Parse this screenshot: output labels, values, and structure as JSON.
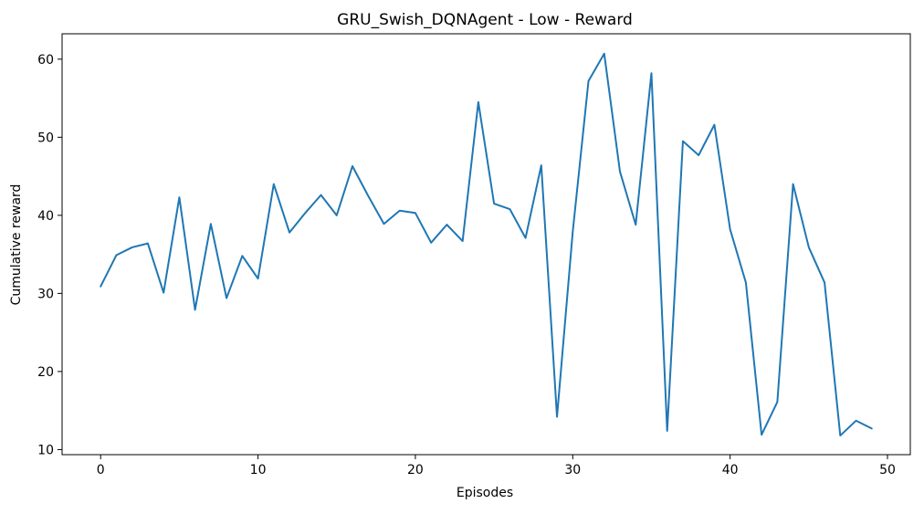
{
  "chart_data": {
    "type": "line",
    "title": "GRU_Swish_DQNAgent - Low - Reward",
    "xlabel": "Episodes",
    "ylabel": "Cumulative reward",
    "xlim": [
      -2.45,
      51.45
    ],
    "ylim": [
      9.35,
      63.25
    ],
    "xticks": [
      0,
      10,
      20,
      30,
      40,
      50
    ],
    "yticks": [
      10,
      20,
      30,
      40,
      50,
      60
    ],
    "grid": false,
    "legend": "none",
    "line_color": "#1f77b4",
    "series": [
      {
        "x": [
          0,
          1,
          2,
          3,
          4,
          5,
          6,
          7,
          8,
          9,
          10,
          11,
          12,
          13,
          14,
          15,
          16,
          17,
          18,
          19,
          20,
          21,
          22,
          23,
          24,
          25,
          26,
          27,
          28,
          29,
          30,
          31,
          32,
          33,
          34,
          35,
          36,
          37,
          38,
          39,
          40,
          41,
          42,
          43,
          44,
          45,
          46,
          47,
          48,
          49
        ],
        "values": [
          30.9,
          34.9,
          35.9,
          36.4,
          30.1,
          42.3,
          27.9,
          38.9,
          29.4,
          34.8,
          31.9,
          44.0,
          37.8,
          40.3,
          42.6,
          40.0,
          46.3,
          42.5,
          38.9,
          40.6,
          40.3,
          36.5,
          38.8,
          36.7,
          54.5,
          41.5,
          40.8,
          37.1,
          46.4,
          14.2,
          37.9,
          57.2,
          60.7,
          45.6,
          38.8,
          58.2,
          12.4,
          49.5,
          47.7,
          51.6,
          38.2,
          31.4,
          11.9,
          16.1,
          44.0,
          35.9,
          31.4,
          11.8,
          13.7,
          12.7
        ]
      }
    ]
  }
}
